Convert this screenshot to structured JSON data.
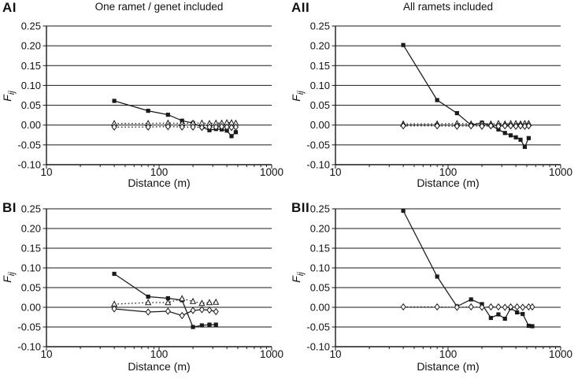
{
  "figure": {
    "background": "#ffffff",
    "text_color": "#111111",
    "ylabel_main": "F",
    "ylabel_sub": "ij",
    "panels": [
      {
        "label": "AI",
        "title": "One ramet / genet included"
      },
      {
        "label": "AII",
        "title": "All ramets included"
      },
      {
        "label": "BI",
        "title": ""
      },
      {
        "label": "BII",
        "title": ""
      }
    ]
  },
  "chart_data": [
    {
      "type": "line",
      "panel": "AI",
      "title": "One ramet / genet included",
      "xlabel": "Distance (m)",
      "ylabel": "F_ij",
      "x_scale": "log",
      "xlim": [
        10,
        1000
      ],
      "ylim": [
        -0.1,
        0.25
      ],
      "ytick_labels": [
        "0.25",
        "0.20",
        "0.15",
        "0.10",
        "0.05",
        "0.00",
        "-0.05",
        "-0.10"
      ],
      "xtick_labels": [
        "10",
        "100",
        "1000"
      ],
      "grid": "horizontal",
      "legend": "none",
      "x": [
        40,
        80,
        120,
        160,
        200,
        240,
        280,
        320,
        360,
        400,
        440,
        480
      ],
      "series": [
        {
          "name": "filled-squares",
          "marker": "square-filled",
          "line": "solid",
          "values": [
            0.061,
            0.036,
            0.026,
            0.011,
            0.005,
            -0.005,
            -0.013,
            -0.01,
            -0.011,
            -0.014,
            -0.028,
            -0.018
          ]
        },
        {
          "name": "open-triangles-upper",
          "marker": "triangle-open",
          "line": "dotted",
          "values": [
            0.004,
            0.004,
            0.005,
            0.004,
            0.005,
            0.005,
            0.004,
            0.005,
            0.005,
            0.006,
            0.006,
            0.005
          ]
        },
        {
          "name": "open-diamonds-lower",
          "marker": "diamond-open",
          "line": "dotted",
          "values": [
            -0.005,
            -0.005,
            -0.004,
            -0.005,
            -0.005,
            -0.006,
            -0.005,
            -0.005,
            -0.004,
            -0.005,
            -0.006,
            -0.005
          ]
        }
      ]
    },
    {
      "type": "line",
      "panel": "AII",
      "title": "All ramets included",
      "xlabel": "Distance (m)",
      "ylabel": "F_ij",
      "x_scale": "log",
      "xlim": [
        10,
        1000
      ],
      "ylim": [
        -0.1,
        0.25
      ],
      "ytick_labels": [
        "0.25",
        "0.20",
        "0.15",
        "0.10",
        "0.05",
        "0.00",
        "-0.05",
        "-0.10"
      ],
      "xtick_labels": [
        "10",
        "100",
        "1000"
      ],
      "grid": "horizontal",
      "legend": "none",
      "x": [
        40,
        80,
        120,
        160,
        200,
        240,
        280,
        320,
        360,
        400,
        440,
        480,
        520
      ],
      "series": [
        {
          "name": "filled-squares",
          "marker": "square-filled",
          "line": "solid",
          "values": [
            0.202,
            0.063,
            0.03,
            0.0,
            0.006,
            -0.001,
            -0.011,
            -0.02,
            -0.026,
            -0.031,
            -0.037,
            -0.055,
            -0.033
          ]
        },
        {
          "name": "open-triangles-upper",
          "marker": "triangle-open",
          "line": "dotted",
          "values": [
            0.003,
            0.003,
            0.004,
            0.003,
            0.004,
            0.003,
            0.004,
            0.003,
            0.004,
            0.004,
            0.003,
            0.004,
            0.004
          ]
        },
        {
          "name": "open-diamonds-lower",
          "marker": "diamond-open",
          "line": "dotted",
          "values": [
            -0.002,
            -0.002,
            -0.003,
            -0.002,
            -0.003,
            -0.002,
            -0.003,
            -0.002,
            -0.002,
            -0.003,
            -0.002,
            -0.003,
            -0.002
          ]
        }
      ]
    },
    {
      "type": "line",
      "panel": "BI",
      "title": "",
      "xlabel": "Distance (m)",
      "ylabel": "F_ij",
      "x_scale": "log",
      "xlim": [
        10,
        1000
      ],
      "ylim": [
        -0.1,
        0.25
      ],
      "ytick_labels": [
        "0.25",
        "0.20",
        "0.15",
        "0.10",
        "0.05",
        "0.00",
        "-0.05",
        "-0.10"
      ],
      "xtick_labels": [
        "10",
        "100",
        "1000"
      ],
      "grid": "horizontal",
      "legend": "none",
      "x": [
        40,
        80,
        120,
        160,
        200,
        240,
        280,
        320
      ],
      "series": [
        {
          "name": "filled-squares",
          "marker": "square-filled",
          "line": "solid",
          "values": [
            0.085,
            0.027,
            0.023,
            0.018,
            -0.05,
            -0.046,
            -0.044,
            -0.044
          ]
        },
        {
          "name": "open-triangles-upper",
          "marker": "triangle-open",
          "line": "dotted",
          "values": [
            0.008,
            0.012,
            0.012,
            0.022,
            0.015,
            0.01,
            0.012,
            0.013
          ]
        },
        {
          "name": "open-diamonds-lower",
          "marker": "diamond-open",
          "line": "solid",
          "values": [
            -0.004,
            -0.012,
            -0.01,
            -0.021,
            -0.008,
            -0.006,
            -0.007,
            -0.011
          ]
        }
      ]
    },
    {
      "type": "line",
      "panel": "BII",
      "title": "",
      "xlabel": "Distance (m)",
      "ylabel": "F_ij",
      "x_scale": "log",
      "xlim": [
        10,
        1000
      ],
      "ylim": [
        -0.1,
        0.25
      ],
      "ytick_labels": [
        "0.25",
        "0.20",
        "0.15",
        "0.10",
        "0.05",
        "0.00",
        "-0.05",
        "-0.10"
      ],
      "xtick_labels": [
        "10",
        "100",
        "1000"
      ],
      "grid": "horizontal",
      "legend": "none",
      "x": [
        40,
        80,
        120,
        160,
        200,
        240,
        280,
        320,
        360,
        410,
        460,
        520,
        560
      ],
      "series": [
        {
          "name": "filled-squares",
          "marker": "square-filled",
          "line": "solid",
          "values": [
            0.245,
            0.078,
            0.002,
            0.02,
            0.008,
            -0.027,
            -0.018,
            -0.029,
            -0.002,
            -0.013,
            -0.017,
            -0.047,
            -0.048
          ]
        },
        {
          "name": "open-diamonds",
          "marker": "diamond-open",
          "line": "dotted",
          "values": [
            0.001,
            0.001,
            0.0,
            0.001,
            0.0,
            0.001,
            0.001,
            0.0,
            0.001,
            0.001,
            0.0,
            0.001,
            0.001
          ]
        }
      ]
    }
  ]
}
